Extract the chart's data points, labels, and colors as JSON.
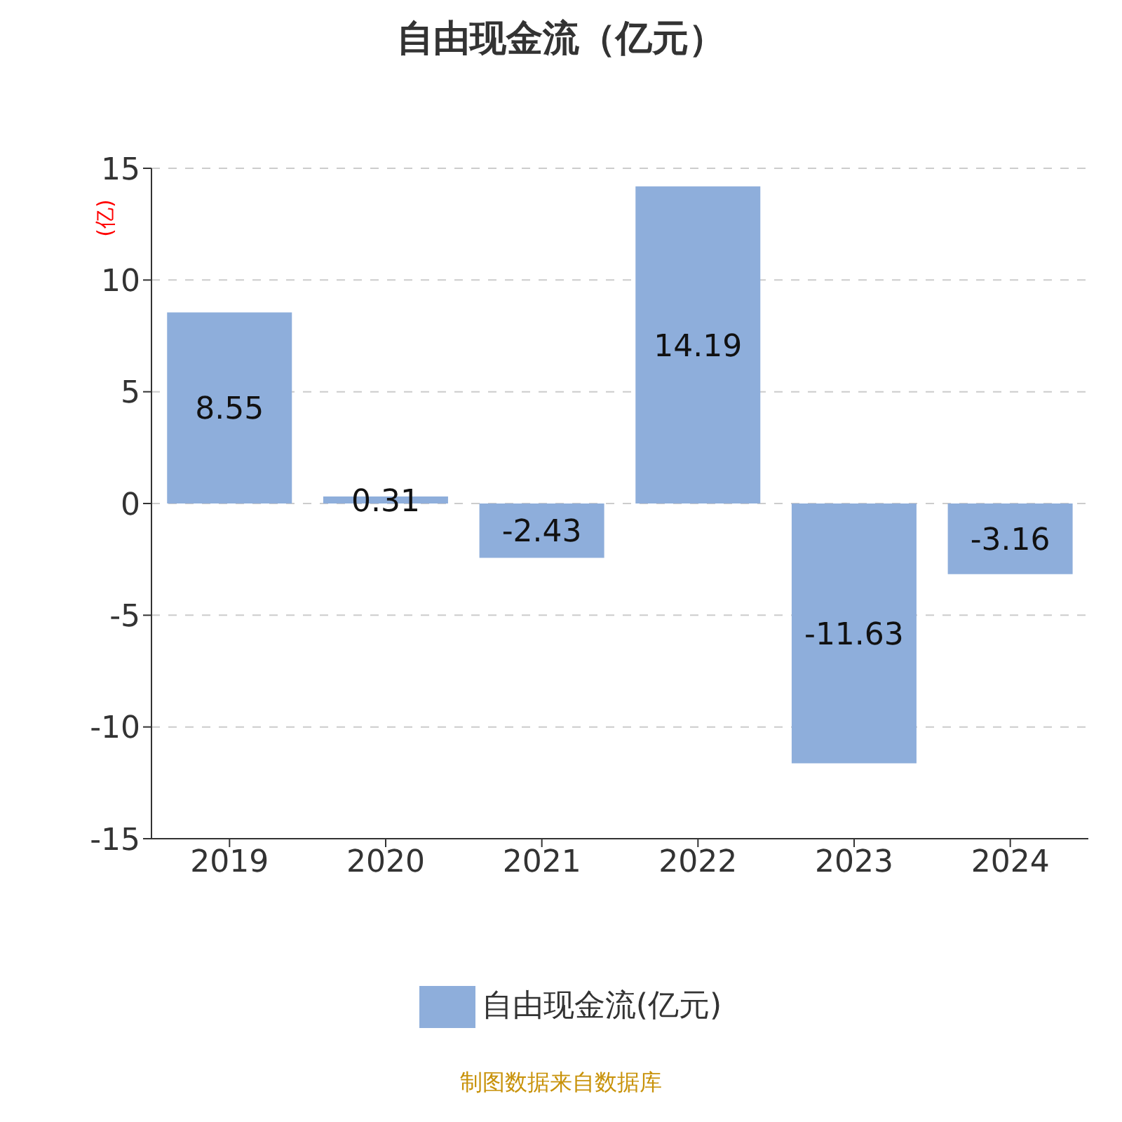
{
  "chart_data": {
    "type": "bar",
    "title": "自由现金流（亿元）",
    "ylabel": "(亿)",
    "categories": [
      "2019",
      "2020",
      "2021",
      "2022",
      "2023",
      "2024"
    ],
    "series": [
      {
        "name": "自由现金流(亿元)",
        "color": "#8eaedb",
        "values": [
          8.55,
          0.31,
          -2.43,
          14.19,
          -11.63,
          -3.16
        ]
      }
    ],
    "ylim": [
      -15,
      15
    ],
    "yticks": [
      -15,
      -10,
      -5,
      0,
      5,
      10,
      15
    ],
    "grid": "y",
    "legend": "bottom",
    "data_labels": true,
    "annotations": [
      "制图数据来自数据库"
    ]
  }
}
